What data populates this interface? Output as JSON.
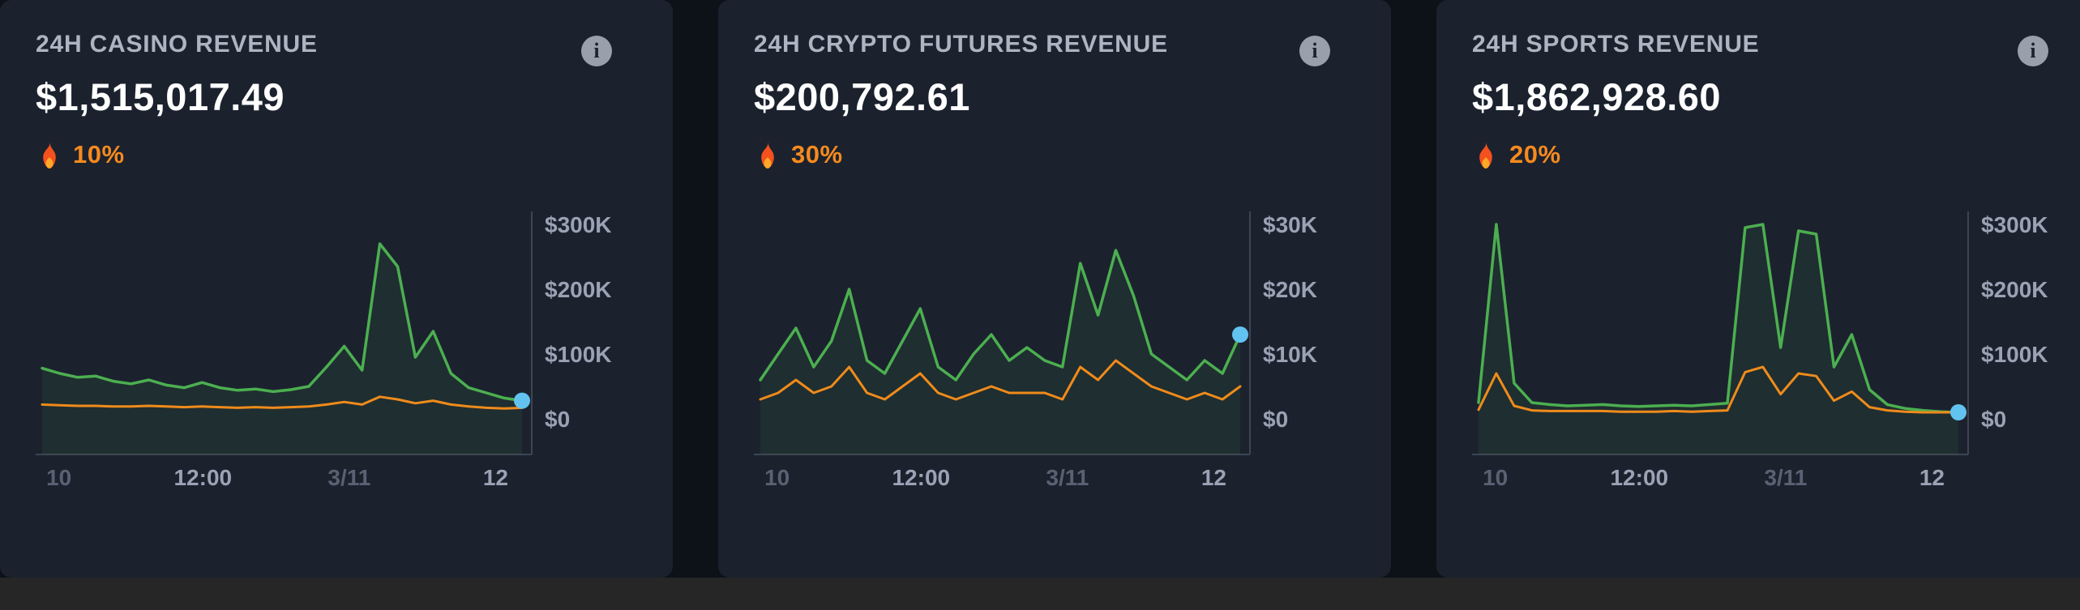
{
  "colors": {
    "page_bg": "#0d1118",
    "card_bg": "#1b222e",
    "green": "#4caf50",
    "orange": "#ef8b1b",
    "marker_blue": "#63c3f0",
    "axis_line": "#3d4454",
    "axis_label": "#9aa2b4",
    "axis_label_muted": "#5a6172",
    "change_orange": "#f68a1e",
    "title_gray": "#aeb4c2"
  },
  "cards": [
    {
      "title": "24H CASINO REVENUE",
      "value": "$1,515,017.49",
      "change": "10%",
      "info_icon": "i"
    },
    {
      "title": "24H CRYPTO FUTURES REVENUE",
      "value": "$200,792.61",
      "change": "30%",
      "info_icon": "i"
    },
    {
      "title": "24H SPORTS REVENUE",
      "value": "$1,862,928.60",
      "change": "20%",
      "info_icon": "i"
    }
  ],
  "chart_data": [
    {
      "type": "line",
      "title": "24H Casino Revenue",
      "unit": "USD thousands",
      "ylim": [
        0,
        330
      ],
      "y_ticks": [
        "$300K",
        "$200K",
        "$100K",
        "$0"
      ],
      "y_tick_values": [
        300,
        200,
        100,
        0
      ],
      "x_ticks": [
        "10",
        "12:00",
        "3/11",
        "12"
      ],
      "x_tick_muted": [
        true,
        false,
        true,
        false
      ],
      "x_tick_positions": [
        0.035,
        0.335,
        0.64,
        0.945
      ],
      "legend": "off",
      "grid": "off",
      "series": [
        {
          "name": "casino-revenue",
          "color": "#4caf50",
          "fill": true,
          "marker_last": true,
          "values": [
            78,
            70,
            64,
            66,
            58,
            54,
            60,
            52,
            48,
            56,
            48,
            44,
            46,
            42,
            45,
            50,
            80,
            112,
            75,
            270,
            235,
            95,
            135,
            70,
            48,
            40,
            32,
            28
          ]
        },
        {
          "name": "casino-secondary",
          "color": "#ef8b1b",
          "fill": false,
          "marker_last": false,
          "values": [
            22,
            21,
            20,
            20,
            19,
            19,
            20,
            19,
            18,
            19,
            18,
            17,
            18,
            17,
            18,
            19,
            22,
            26,
            22,
            34,
            30,
            24,
            28,
            22,
            19,
            17,
            16,
            17
          ]
        }
      ]
    },
    {
      "type": "line",
      "title": "24H Crypto Futures Revenue",
      "unit": "USD thousands",
      "ylim": [
        0,
        33
      ],
      "y_ticks": [
        "$30K",
        "$20K",
        "$10K",
        "$0"
      ],
      "y_tick_values": [
        30,
        20,
        10,
        0
      ],
      "x_ticks": [
        "10",
        "12:00",
        "3/11",
        "12"
      ],
      "x_tick_muted": [
        true,
        false,
        true,
        false
      ],
      "x_tick_positions": [
        0.035,
        0.335,
        0.64,
        0.945
      ],
      "legend": "off",
      "grid": "off",
      "series": [
        {
          "name": "crypto-futures-revenue",
          "color": "#4caf50",
          "fill": true,
          "marker_last": true,
          "values": [
            6,
            10,
            14,
            8,
            12,
            20,
            9,
            7,
            12,
            17,
            8,
            6,
            10,
            13,
            9,
            11,
            9,
            8,
            24,
            16,
            26,
            19,
            10,
            8,
            6,
            9,
            7,
            13
          ]
        },
        {
          "name": "crypto-secondary",
          "color": "#ef8b1b",
          "fill": false,
          "marker_last": false,
          "values": [
            3,
            4,
            6,
            4,
            5,
            8,
            4,
            3,
            5,
            7,
            4,
            3,
            4,
            5,
            4,
            4,
            4,
            3,
            8,
            6,
            9,
            7,
            5,
            4,
            3,
            4,
            3,
            5
          ]
        }
      ]
    },
    {
      "type": "line",
      "title": "24H Sports Revenue",
      "unit": "USD thousands",
      "ylim": [
        0,
        330
      ],
      "y_ticks": [
        "$300K",
        "$200K",
        "$100K",
        "$0"
      ],
      "y_tick_values": [
        300,
        200,
        100,
        0
      ],
      "x_ticks": [
        "10",
        "12:00",
        "3/11",
        "12"
      ],
      "x_tick_muted": [
        true,
        false,
        true,
        false
      ],
      "x_tick_positions": [
        0.035,
        0.335,
        0.64,
        0.945
      ],
      "legend": "off",
      "grid": "off",
      "series": [
        {
          "name": "sports-revenue",
          "color": "#4caf50",
          "fill": true,
          "marker_last": true,
          "values": [
            25,
            300,
            55,
            25,
            22,
            20,
            21,
            22,
            20,
            19,
            20,
            21,
            20,
            22,
            24,
            295,
            300,
            110,
            290,
            285,
            80,
            130,
            45,
            22,
            16,
            13,
            11,
            10
          ]
        },
        {
          "name": "sports-secondary",
          "color": "#ef8b1b",
          "fill": false,
          "marker_last": false,
          "values": [
            14,
            70,
            20,
            13,
            12,
            12,
            12,
            12,
            11,
            11,
            11,
            12,
            11,
            12,
            13,
            72,
            80,
            38,
            70,
            66,
            28,
            42,
            18,
            13,
            11,
            10,
            10,
            10
          ]
        }
      ]
    }
  ]
}
